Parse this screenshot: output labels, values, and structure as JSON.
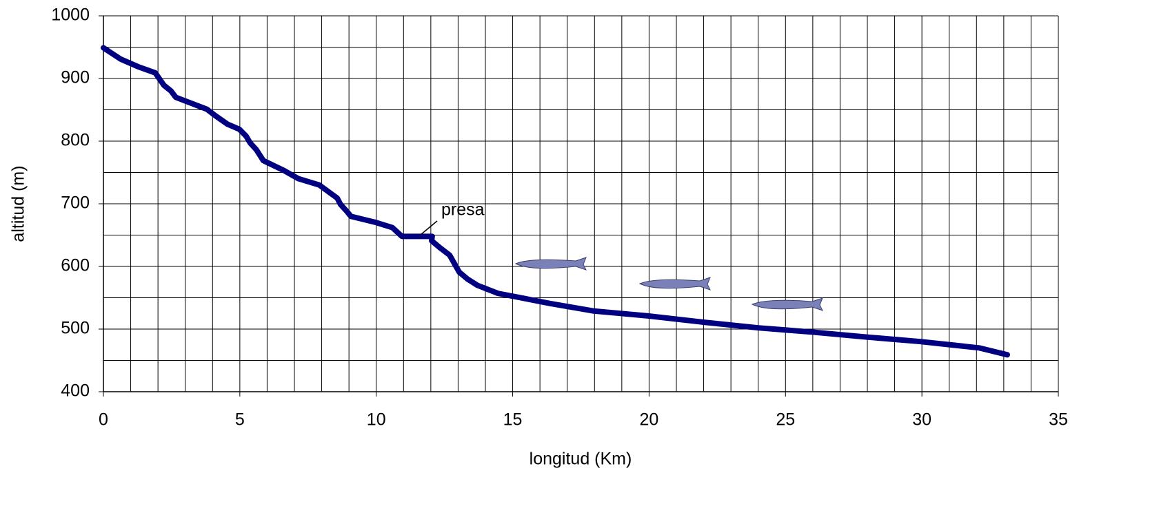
{
  "chart_data": {
    "type": "line",
    "x_label": "longitud  (Km)",
    "y_label": "altitud (m)",
    "annotation": "presa",
    "x": [
      0,
      0.63,
      1.26,
      1.9,
      2.22,
      2.48,
      2.65,
      3.79,
      4.09,
      4.55,
      4.98,
      5.23,
      5.38,
      5.61,
      5.86,
      6.62,
      7.15,
      7.91,
      8.57,
      8.69,
      8.9,
      9.07,
      10.0,
      10.59,
      10.94,
      12.05,
      12.03,
      12.33,
      12.69,
      13.04,
      13.34,
      13.7,
      14.46,
      15.42,
      16.35,
      17.94,
      19.96,
      21.99,
      24.0,
      26.03,
      28.05,
      29.95,
      32.09,
      33.13
    ],
    "series": [
      {
        "color": "#000080",
        "values": [
          949,
          931,
          919,
          909,
          889,
          880,
          870,
          851,
          841,
          827,
          819,
          808,
          797,
          786,
          769,
          753,
          740,
          730,
          709,
          699,
          689,
          680,
          670,
          662,
          648,
          648,
          641,
          630,
          618,
          591,
          580,
          570,
          557,
          549,
          541,
          529,
          521,
          511,
          502,
          495,
          487,
          480,
          470,
          459
        ]
      }
    ],
    "xlim": [
      0,
      35
    ],
    "xticks": [
      0,
      5,
      10,
      15,
      20,
      25,
      30,
      35
    ],
    "ylim": [
      400,
      1000
    ],
    "yticks": [
      400,
      500,
      600,
      700,
      800,
      900,
      1000
    ],
    "grid": true
  }
}
